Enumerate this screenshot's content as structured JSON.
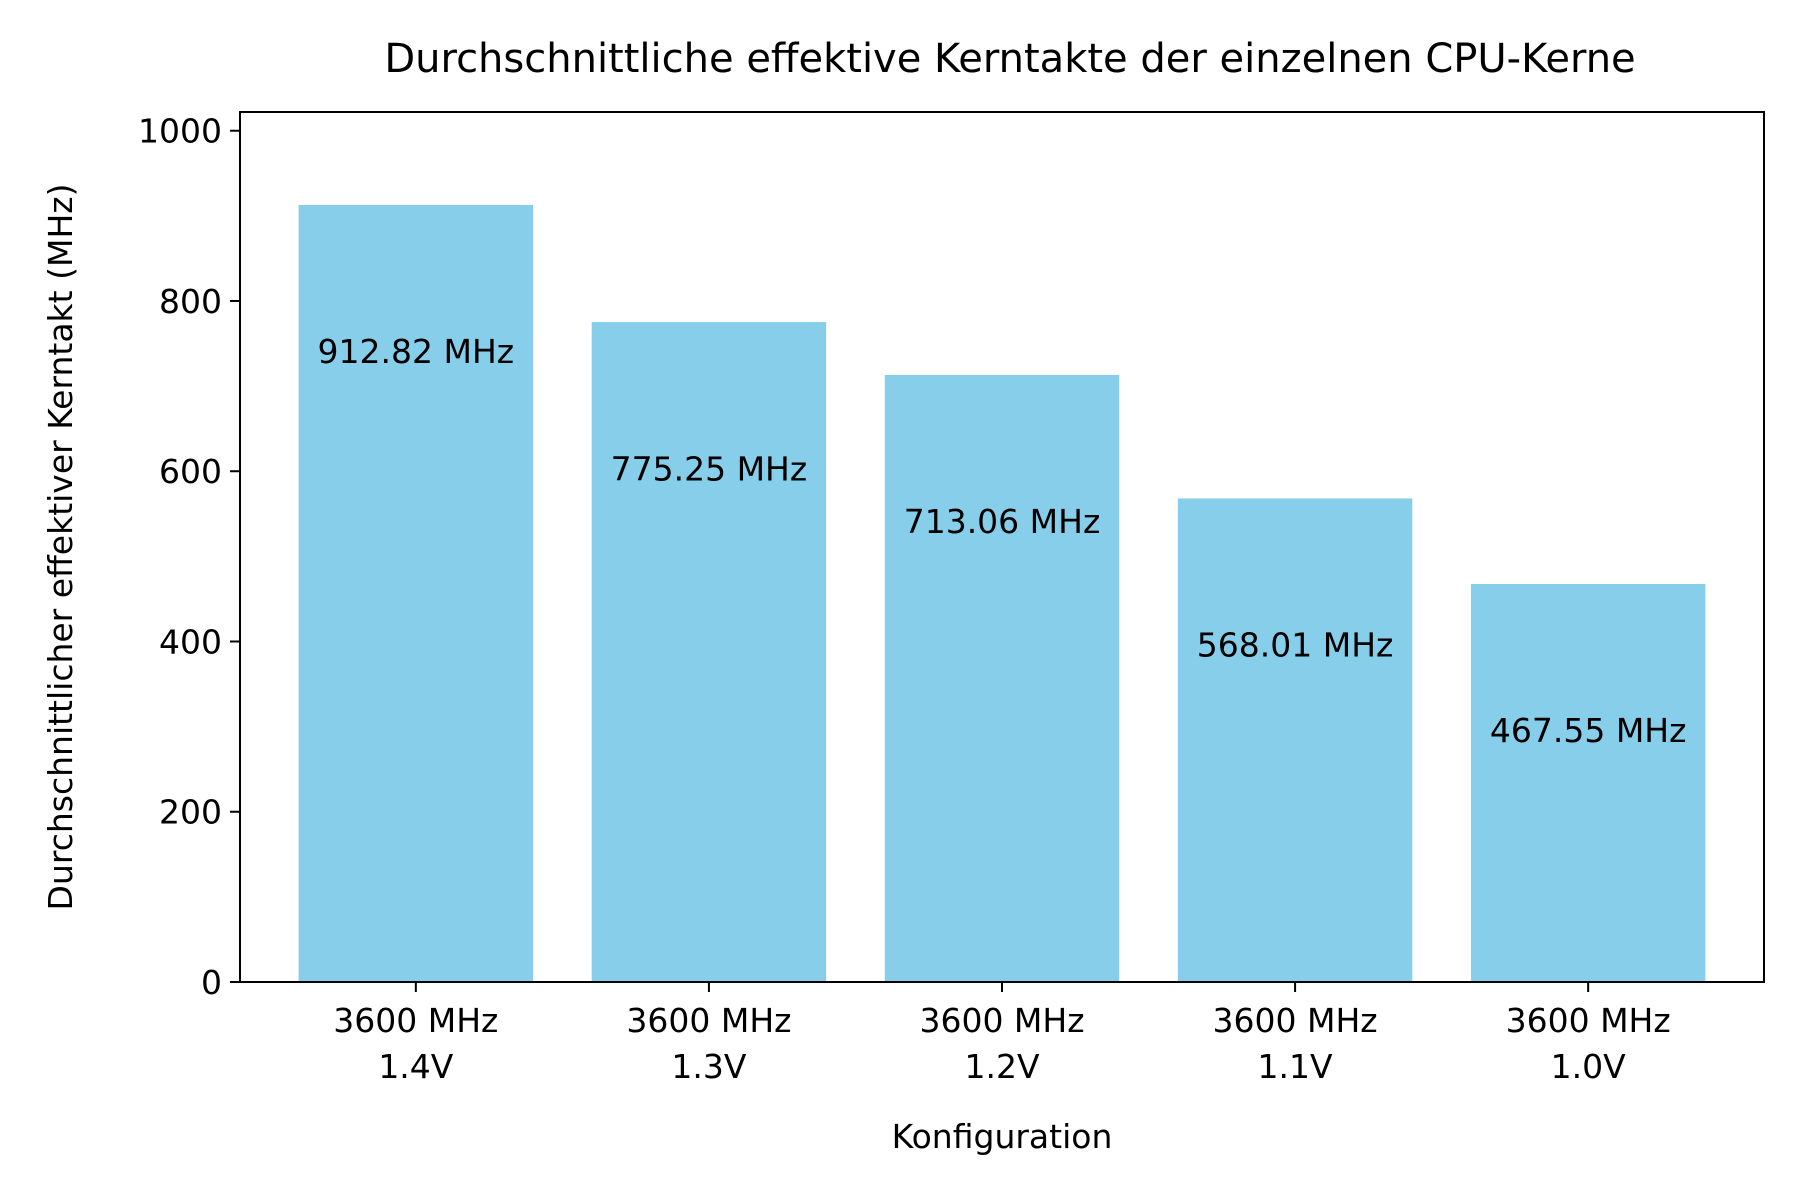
{
  "chart_data": {
    "type": "bar",
    "title": "Durchschnittliche effektive Kerntakte der einzelnen CPU-Kerne",
    "xlabel": "Konfiguration",
    "ylabel": "Durchschnittlicher effektiver Kerntakt (MHz)",
    "categories": [
      [
        "3600 MHz",
        "1.4V"
      ],
      [
        "3600 MHz",
        "1.3V"
      ],
      [
        "3600 MHz",
        "1.2V"
      ],
      [
        "3600 MHz",
        "1.1V"
      ],
      [
        "3600 MHz",
        "1.0V"
      ]
    ],
    "values": [
      912.82,
      775.25,
      713.06,
      568.01,
      467.55
    ],
    "data_labels": [
      "912.82 MHz",
      "775.25 MHz",
      "713.06 MHz",
      "568.01 MHz",
      "467.55 MHz"
    ],
    "ylim": [
      0,
      1022
    ],
    "yticks": [
      0,
      200,
      400,
      600,
      800,
      1000
    ],
    "bar_color": "#87CEEB",
    "grid": false,
    "legend": "none"
  }
}
